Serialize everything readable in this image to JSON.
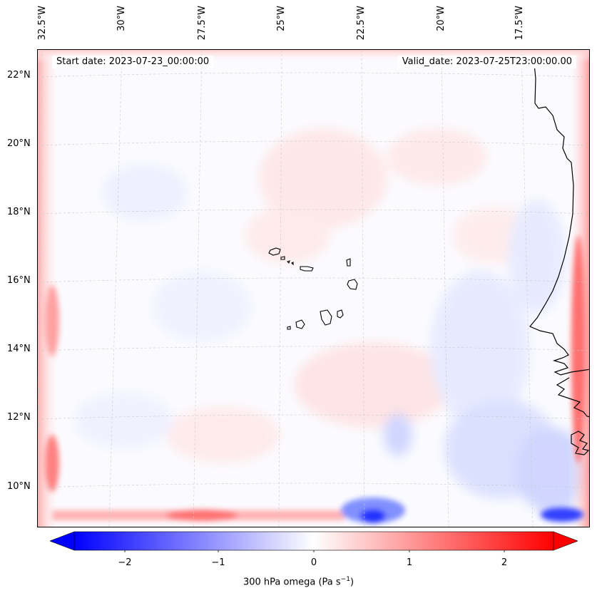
{
  "map": {
    "start_date": "Start date: 2023-07-23_00:00:00",
    "valid_date": "Valid_date: 2023-07-25T23:00:00.00",
    "lon_labels": [
      "32.5°W",
      "30°W",
      "27.5°W",
      "25°W",
      "22.5°W",
      "20°W",
      "17.5°W"
    ],
    "lat_labels": [
      "22°N",
      "20°N",
      "18°N",
      "16°N",
      "14°N",
      "12°N",
      "10°N"
    ],
    "gridlines": true,
    "field": "300 hPa omega",
    "colormap": "bwr",
    "colors": {
      "negative": "#0000ff",
      "neutral": "#ffffff",
      "positive": "#ff0000",
      "coastline": "#000000"
    }
  },
  "colorbar": {
    "ticks": [
      "−2",
      "−1",
      "0",
      "1",
      "2"
    ],
    "range": [
      -2.6,
      2.6
    ],
    "extend": "both",
    "label_main": "300 hPa omega (Pa s",
    "label_sup": "−1",
    "label_end": ")"
  }
}
